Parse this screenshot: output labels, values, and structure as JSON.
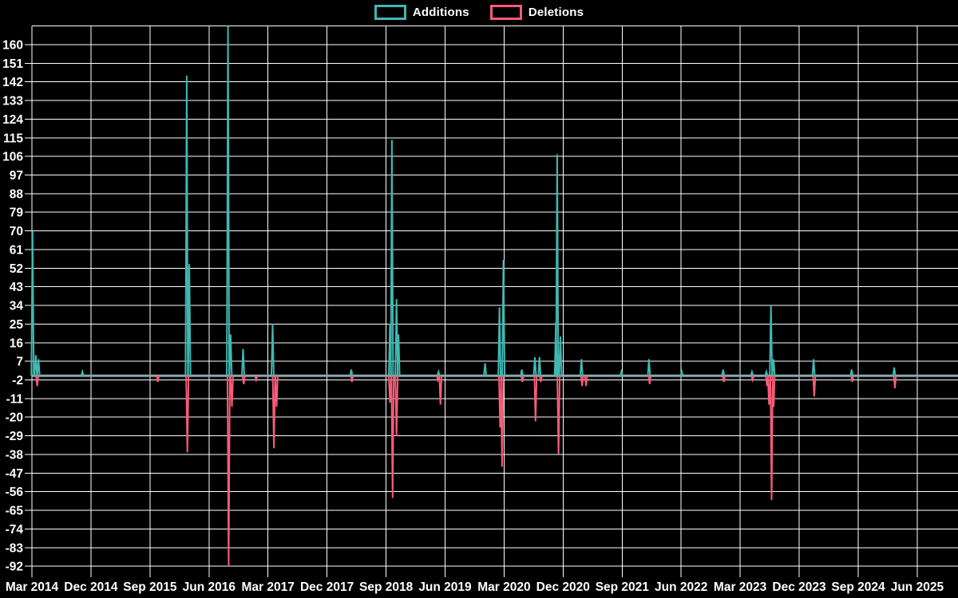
{
  "legend": {
    "additions": "Additions",
    "deletions": "Deletions"
  },
  "colors": {
    "additions": "#3fb8b2",
    "deletions": "#f85c78",
    "grid": "#ffffff",
    "baseline": "#8aa8b0",
    "text": "#ffffff",
    "background": "#000000"
  },
  "chart_data": {
    "type": "line",
    "title": "",
    "description": "Weekly additions/deletions spike chart (code-frequency style), zero baseline with sparse spikes",
    "x_axis": {
      "unit": "months since Mar 2014",
      "tick_step_months": 9,
      "tick_labels": [
        "Mar 2014",
        "Dec 2014",
        "Sep 2015",
        "Jun 2016",
        "Mar 2017",
        "Dec 2017",
        "Sep 2018",
        "Jun 2019",
        "Mar 2020",
        "Dec 2020",
        "Sep 2021",
        "Jun 2022",
        "Mar 2023",
        "Dec 2023",
        "Sep 2024",
        "Jun 2025"
      ],
      "domain_months": [
        0,
        141.2
      ]
    },
    "y_axis": {
      "tick_labels": [
        "160",
        "151",
        "142",
        "133",
        "124",
        "115",
        "106",
        "97",
        "88",
        "79",
        "70",
        "61",
        "52",
        "43",
        "34",
        "25",
        "16",
        "7",
        "-2",
        "-11",
        "-20",
        "-29",
        "-38",
        "-47",
        "-56",
        "-65",
        "-74",
        "-83",
        "-92"
      ],
      "tick_step": 9,
      "min": -92,
      "max": 169,
      "top_gridline_value_unlabeled": 169,
      "grid": "on"
    },
    "baseline_value": 0,
    "series": [
      {
        "name": "Additions",
        "color_key": "additions",
        "spikes": [
          [
            0.1,
            70
          ],
          [
            0.6,
            10
          ],
          [
            1.0,
            8
          ],
          [
            7.7,
            2
          ],
          [
            23.6,
            145
          ],
          [
            24.0,
            54
          ],
          [
            29.9,
            169
          ],
          [
            30.3,
            20
          ],
          [
            32.2,
            13
          ],
          [
            36.7,
            25
          ],
          [
            48.7,
            3
          ],
          [
            54.6,
            25
          ],
          [
            54.9,
            114
          ],
          [
            55.6,
            37
          ],
          [
            55.9,
            20
          ],
          [
            62.0,
            2
          ],
          [
            69.1,
            6
          ],
          [
            71.3,
            33
          ],
          [
            71.9,
            56
          ],
          [
            74.7,
            3
          ],
          [
            76.7,
            9
          ],
          [
            77.4,
            9
          ],
          [
            79.9,
            26
          ],
          [
            80.1,
            107
          ],
          [
            80.6,
            19
          ],
          [
            83.8,
            8
          ],
          [
            89.9,
            2
          ],
          [
            94.1,
            8
          ],
          [
            99.1,
            2
          ],
          [
            105.4,
            3
          ],
          [
            109.8,
            2
          ],
          [
            112.0,
            2
          ],
          [
            112.7,
            34
          ],
          [
            113.1,
            8
          ],
          [
            119.2,
            8
          ],
          [
            125.0,
            3
          ],
          [
            131.5,
            4
          ]
        ]
      },
      {
        "name": "Deletions",
        "color_key": "deletions",
        "spikes": [
          [
            0.8,
            -5
          ],
          [
            19.2,
            -3
          ],
          [
            23.7,
            -37
          ],
          [
            30.0,
            -92
          ],
          [
            30.5,
            -15
          ],
          [
            32.3,
            -4
          ],
          [
            34.2,
            -2
          ],
          [
            36.9,
            -35
          ],
          [
            37.3,
            -15
          ],
          [
            48.8,
            -3
          ],
          [
            54.6,
            -13
          ],
          [
            55.0,
            -59
          ],
          [
            55.6,
            -29
          ],
          [
            61.9,
            -2
          ],
          [
            62.3,
            -14
          ],
          [
            71.4,
            -25
          ],
          [
            71.7,
            -44
          ],
          [
            74.8,
            -3
          ],
          [
            76.8,
            -22
          ],
          [
            77.6,
            -3
          ],
          [
            80.3,
            -38
          ],
          [
            83.9,
            -5
          ],
          [
            84.5,
            -5
          ],
          [
            94.2,
            -4
          ],
          [
            105.5,
            -3
          ],
          [
            109.9,
            -2
          ],
          [
            112.1,
            -5
          ],
          [
            112.4,
            -14
          ],
          [
            112.8,
            -60
          ],
          [
            113.1,
            -15
          ],
          [
            119.3,
            -10
          ],
          [
            125.1,
            -3
          ],
          [
            131.6,
            -6
          ]
        ]
      }
    ],
    "notes": "Spike at month 29.9 (Sep 2016) is clipped at chart top (>=169). Values in lines-of-code changed per week."
  }
}
